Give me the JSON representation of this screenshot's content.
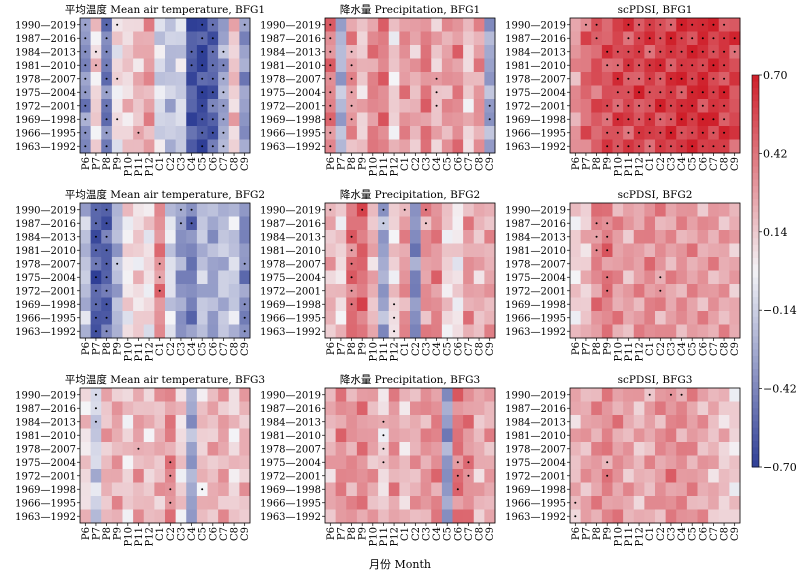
{
  "figure": {
    "xlabel": "月份 Month",
    "colorbar_ticks": [
      "0.70",
      "0.42",
      "0.14",
      "−0.14",
      "−0.42",
      "−0.70"
    ]
  },
  "chart_data": {
    "type": "heatmap",
    "value_range": [
      -0.7,
      0.7
    ],
    "colormap": {
      "low": "#2f3f96",
      "mid": "#f4f4f7",
      "high": "#cf1f2a"
    },
    "rows": [
      "1990—2019",
      "1987—2016",
      "1984—2013",
      "1981—2010",
      "1978—2007",
      "1975—2004",
      "1972—2001",
      "1969—1998",
      "1966—1995",
      "1963—1992"
    ],
    "cols": [
      "P6",
      "P7",
      "P8",
      "P9",
      "P10",
      "P11",
      "P12",
      "C1",
      "C2",
      "C3",
      "C4",
      "C5",
      "C6",
      "C7",
      "C8",
      "C9"
    ],
    "panels": [
      {
        "title": "平均温度 Mean air temperature, BFG1",
        "base": [
          -0.38,
          0.1,
          -0.45,
          0.05,
          0.12,
          0.18,
          0.28,
          -0.1,
          -0.2,
          -0.12,
          -0.6,
          -0.65,
          -0.55,
          -0.3,
          0.15,
          -0.35
        ],
        "dots": [
          [
            0,
            1,
            2,
            3,
            4,
            5,
            6,
            7,
            8,
            9
          ],
          [
            2,
            3
          ],
          [
            0,
            1,
            2,
            3,
            4,
            5,
            6,
            7,
            8,
            9
          ],
          [
            0,
            4,
            7
          ],
          [],
          [
            8
          ],
          [],
          [],
          [],
          [],
          [
            2,
            3
          ],
          [
            0,
            1,
            2,
            3,
            4,
            5,
            6,
            7,
            8,
            9
          ],
          [
            0,
            1,
            2,
            3,
            4,
            5,
            6,
            7,
            8,
            9
          ],
          [
            2,
            3,
            4,
            5,
            6,
            7,
            8,
            9
          ],
          [],
          [
            0
          ]
        ]
      },
      {
        "title": "降水量 Precipitation, BFG1",
        "base": [
          0.38,
          -0.25,
          0.3,
          0.15,
          0.35,
          0.4,
          0.1,
          0.32,
          0.22,
          0.4,
          0.18,
          0.28,
          0.35,
          0.12,
          0.3,
          -0.3
        ],
        "dots": [
          [
            0,
            1,
            2,
            3,
            4,
            5,
            6,
            7,
            8,
            9
          ],
          [],
          [
            2,
            3,
            4,
            5,
            6,
            7
          ],
          [],
          [],
          [],
          [],
          [],
          [],
          [],
          [
            4,
            5,
            6
          ],
          [],
          [],
          [],
          [],
          [
            6,
            7
          ]
        ]
      },
      {
        "title": "scPDSI, BFG1",
        "base": [
          0.3,
          0.45,
          0.5,
          0.52,
          0.55,
          0.55,
          0.56,
          0.57,
          0.58,
          0.6,
          0.62,
          0.64,
          0.64,
          0.62,
          0.6,
          0.55
        ],
        "dots": [
          [],
          [
            0
          ],
          [
            0,
            1
          ],
          [
            2,
            3,
            6,
            7,
            8,
            9
          ],
          [
            2,
            3,
            4,
            5,
            6,
            7,
            8,
            9
          ],
          [
            0,
            1,
            2,
            3,
            4,
            5,
            6,
            7,
            8,
            9
          ],
          [
            0,
            1,
            2,
            3,
            4,
            5,
            6,
            7,
            8,
            9
          ],
          [
            0,
            1,
            2,
            3,
            4,
            5,
            6,
            7,
            8,
            9
          ],
          [
            0,
            1,
            2,
            3,
            4,
            5,
            6,
            7,
            8,
            9
          ],
          [
            0,
            1,
            2,
            3,
            4,
            5,
            6,
            7,
            8,
            9
          ],
          [
            0,
            1,
            2,
            3,
            4,
            5,
            6,
            7,
            8,
            9
          ],
          [
            0,
            1,
            2,
            3,
            4,
            5,
            6,
            7,
            8,
            9
          ],
          [
            0,
            1,
            2,
            3,
            4,
            5,
            6,
            7,
            8,
            9
          ],
          [
            0,
            1,
            2,
            3,
            4,
            5,
            6,
            7,
            8,
            9
          ],
          [
            0,
            1,
            2,
            3,
            4,
            5,
            6,
            7,
            8,
            9
          ],
          [
            1,
            2
          ]
        ]
      },
      {
        "title": "平均温度 Mean air temperature, BFG2",
        "base": [
          -0.2,
          -0.58,
          -0.55,
          -0.25,
          0.05,
          0.1,
          0.05,
          0.35,
          -0.1,
          -0.35,
          -0.45,
          -0.2,
          -0.3,
          -0.2,
          -0.15,
          -0.4
        ],
        "dots": [
          [],
          [
            0,
            1,
            2,
            3,
            4,
            5,
            6,
            7,
            8,
            9
          ],
          [
            0,
            1,
            2,
            3,
            4,
            5,
            6,
            7,
            8,
            9
          ],
          [
            4
          ],
          [],
          [],
          [],
          [
            4,
            5,
            6
          ],
          [],
          [
            0,
            1
          ],
          [
            0,
            1
          ],
          [],
          [],
          [],
          [],
          [
            4,
            7,
            8,
            9
          ]
        ]
      },
      {
        "title": "降水量 Precipitation, BFG2",
        "base": [
          0.2,
          0.1,
          0.42,
          0.45,
          0.2,
          -0.3,
          0.1,
          0.3,
          -0.4,
          0.3,
          0.35,
          0.1,
          0.05,
          0.3,
          0.2,
          0.25
        ],
        "dots": [
          [
            0
          ],
          [],
          [
            2,
            3,
            4,
            5,
            6,
            7
          ],
          [
            0
          ],
          [],
          [
            0,
            1
          ],
          [
            7,
            8,
            9
          ],
          [
            0
          ],
          [],
          [
            0,
            1
          ],
          [],
          [],
          [],
          [],
          [],
          []
        ]
      },
      {
        "title": "scPDSI, BFG2",
        "base": [
          0.1,
          0.15,
          0.35,
          0.4,
          0.3,
          0.25,
          0.3,
          0.35,
          0.3,
          0.28,
          0.3,
          0.3,
          0.28,
          0.28,
          0.26,
          0.22
        ],
        "dots": [
          [],
          [],
          [
            1,
            2,
            3
          ],
          [
            1,
            2,
            3,
            5,
            6
          ],
          [],
          [],
          [],
          [],
          [
            5,
            6
          ],
          [],
          [],
          [],
          [],
          [],
          [],
          []
        ]
      },
      {
        "title": "平均温度 Mean air temperature, BFG3",
        "base": [
          0.1,
          -0.15,
          0.2,
          0.25,
          0.1,
          0.25,
          0.15,
          0.2,
          0.35,
          0.1,
          -0.3,
          0.15,
          0.2,
          0.25,
          0.1,
          0.2
        ],
        "dots": [
          [],
          [
            0,
            1,
            2
          ],
          [],
          [],
          [],
          [
            4
          ],
          [],
          [],
          [
            5,
            6,
            7,
            8
          ],
          [],
          [],
          [
            7
          ],
          [],
          [],
          [],
          []
        ]
      },
      {
        "title": "降水量 Precipitation, BFG3",
        "base": [
          0.2,
          0.35,
          0.3,
          0.35,
          0.25,
          0.1,
          0.3,
          0.15,
          0.25,
          0.3,
          0.35,
          -0.35,
          0.4,
          0.35,
          0.2,
          0.25
        ],
        "dots": [
          [],
          [],
          [],
          [],
          [],
          [
            2,
            3,
            4,
            5
          ],
          [],
          [],
          [],
          [],
          [],
          [],
          [
            5,
            6,
            7
          ],
          [
            5,
            6
          ],
          [],
          []
        ]
      },
      {
        "title": "scPDSI, BFG3",
        "base": [
          0.2,
          0.25,
          0.3,
          0.35,
          0.3,
          0.25,
          0.2,
          0.25,
          0.3,
          0.35,
          0.32,
          0.3,
          0.25,
          0.2,
          0.15,
          0.1
        ],
        "dots": [
          [
            8,
            9
          ],
          [],
          [],
          [
            5,
            6
          ],
          [],
          [],
          [],
          [
            0
          ],
          [],
          [
            0
          ],
          [
            0
          ],
          [],
          [],
          [],
          [],
          []
        ]
      }
    ]
  }
}
